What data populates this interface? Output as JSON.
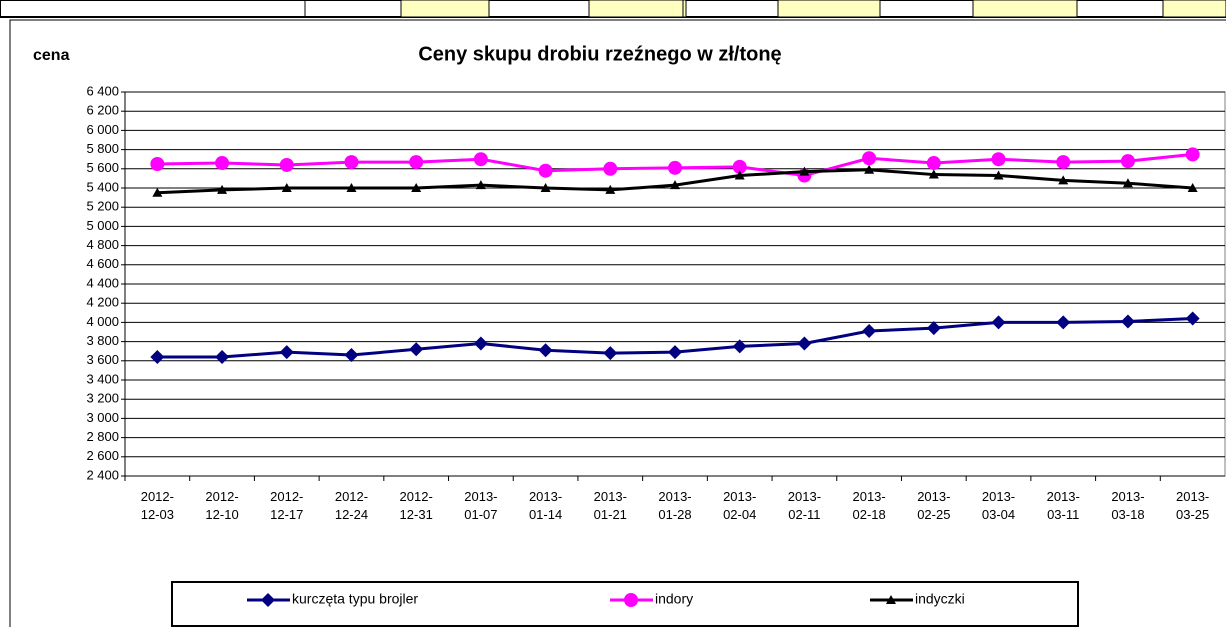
{
  "chart_data": {
    "type": "line",
    "title": "Ceny skupu drobiu rzeźnego w zł/tonę",
    "y_label": "cena",
    "categories": [
      "2012-\n12-03",
      "2012-\n12-10",
      "2012-\n12-17",
      "2012-\n12-24",
      "2012-\n12-31",
      "2013-\n01-07",
      "2013-\n01-14",
      "2013-\n01-21",
      "2013-\n01-28",
      "2013-\n02-04",
      "2013-\n02-11",
      "2013-\n02-18",
      "2013-\n02-25",
      "2013-\n03-04",
      "2013-\n03-11",
      "2013-\n03-18",
      "2013-\n03-25"
    ],
    "series": [
      {
        "name": "kurczęta typu brojler",
        "color": "#000080",
        "marker": "diamond",
        "values": [
          3640,
          3640,
          3690,
          3660,
          3720,
          3780,
          3710,
          3680,
          3690,
          3750,
          3780,
          3910,
          3940,
          4000,
          4000,
          4010,
          4040
        ]
      },
      {
        "name": "indory",
        "color": "#ff00ff",
        "marker": "circle",
        "values": [
          5650,
          5660,
          5640,
          5670,
          5670,
          5700,
          5580,
          5600,
          5610,
          5620,
          5530,
          5710,
          5660,
          5700,
          5670,
          5680,
          5750
        ]
      },
      {
        "name": "indyczki",
        "color": "#000000",
        "marker": "triangle",
        "values": [
          5350,
          5380,
          5400,
          5400,
          5400,
          5430,
          5400,
          5380,
          5430,
          5530,
          5570,
          5590,
          5540,
          5530,
          5480,
          5450,
          5400
        ]
      }
    ],
    "ylim": [
      2400,
      6400
    ],
    "yticks": [
      {
        "value": 2400,
        "label": "2 400"
      },
      {
        "value": 2600,
        "label": "2 600"
      },
      {
        "value": 2800,
        "label": "2 800"
      },
      {
        "value": 3000,
        "label": "3 000"
      },
      {
        "value": 3200,
        "label": "3 200"
      },
      {
        "value": 3400,
        "label": "3 400"
      },
      {
        "value": 3600,
        "label": "3 600"
      },
      {
        "value": 3800,
        "label": "3 800"
      },
      {
        "value": 4000,
        "label": "4 000"
      },
      {
        "value": 4200,
        "label": "4 200"
      },
      {
        "value": 4400,
        "label": "4 400"
      },
      {
        "value": 4600,
        "label": "4 600"
      },
      {
        "value": 4800,
        "label": "4 800"
      },
      {
        "value": 5000,
        "label": "5 000"
      },
      {
        "value": 5200,
        "label": "5 200"
      },
      {
        "value": 5400,
        "label": "5 400"
      },
      {
        "value": 5600,
        "label": "5 600"
      },
      {
        "value": 5800,
        "label": "5 800"
      },
      {
        "value": 6000,
        "label": "6 000"
      },
      {
        "value": 6200,
        "label": "6 200"
      },
      {
        "value": 6400,
        "label": "6 400"
      }
    ],
    "grid": true
  }
}
